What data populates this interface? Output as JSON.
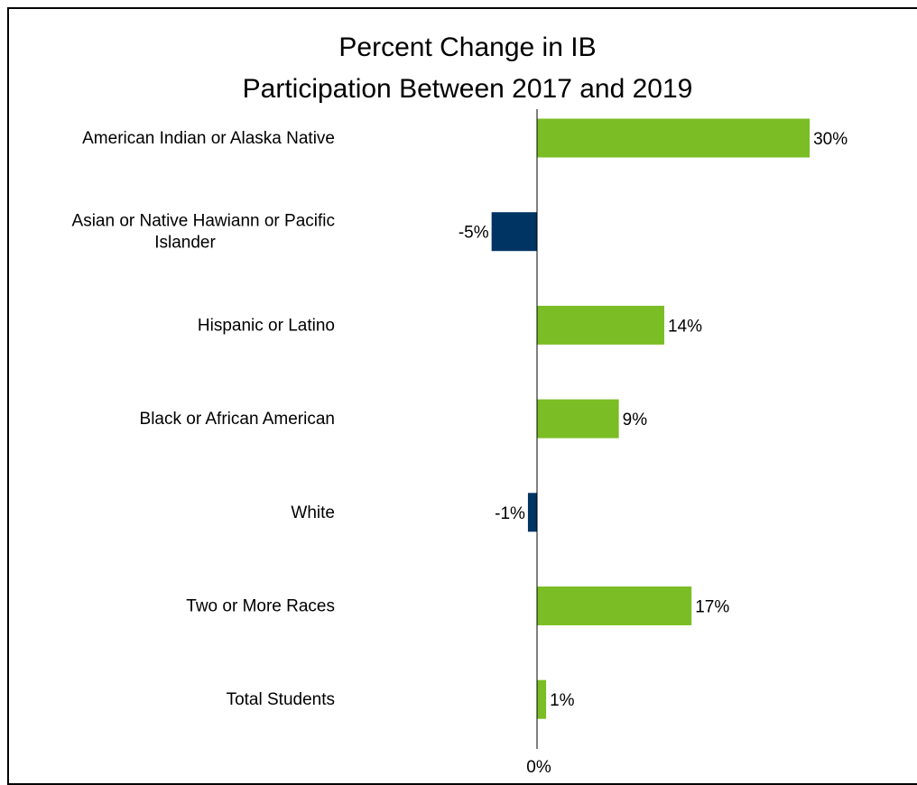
{
  "chart_data": {
    "type": "bar",
    "orientation": "horizontal",
    "title_lines": [
      "Percent Change in IB",
      "Participation Between 2017 and 2019"
    ],
    "categories": [
      "American Indian or Alaska Native",
      "Asian or Native Hawiann or Pacific Islander",
      "Hispanic or Latino",
      "Black or African American",
      "White",
      "Two or More Races",
      "Total Students"
    ],
    "category_label_lines": [
      [
        "American Indian or Alaska Native"
      ],
      [
        "Asian or Native Hawiann or Pacific",
        "Islander"
      ],
      [
        "Hispanic or Latino"
      ],
      [
        "Black or African American"
      ],
      [
        "White"
      ],
      [
        "Two or More Races"
      ],
      [
        "Total Students"
      ]
    ],
    "values": [
      30,
      -5,
      14,
      9,
      -1,
      17,
      1
    ],
    "value_labels": [
      "30%",
      "-5%",
      "14%",
      "9%",
      "-1%",
      "17%",
      "1%"
    ],
    "x_tick_labels": [
      "0%"
    ],
    "xlim": [
      -9,
      30
    ],
    "grid": false,
    "legend": "none",
    "colors": {
      "positive": "#7ABD24",
      "negative": "#003462"
    }
  }
}
